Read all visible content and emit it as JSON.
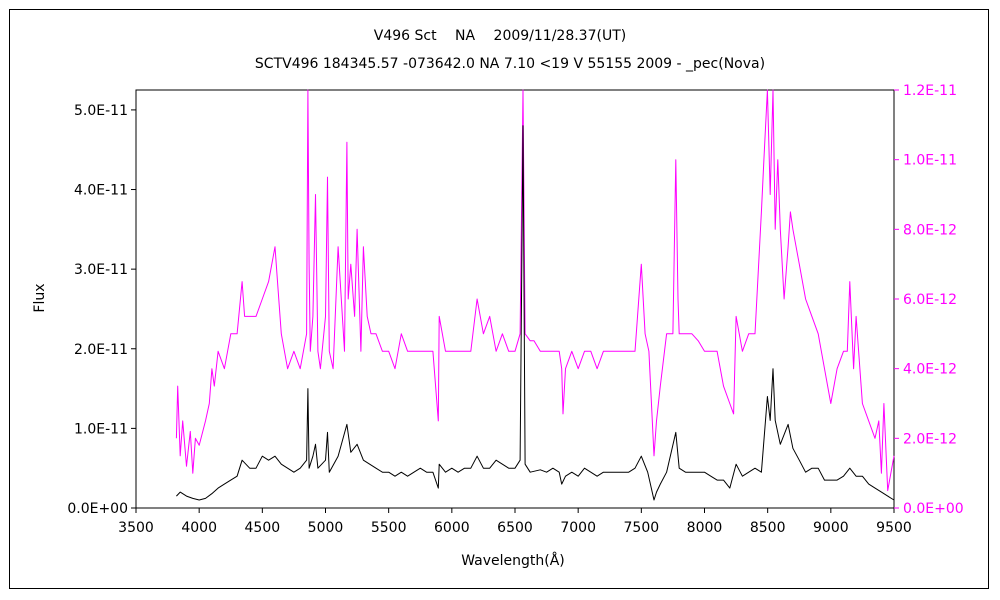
{
  "chart_data": {
    "type": "line",
    "title": "V496 Sct　 NA　 2009/11/28.37(UT)",
    "subtitle": "SCTV496 184345.57 -073642.0 NA 7.10 <19 V 55155 2009 - _pec(Nova)",
    "xlabel": "Wavelength(Å)",
    "ylabel": "Flux",
    "xlim": [
      3500,
      9500
    ],
    "ylim_left": [
      0,
      5.25e-11
    ],
    "ylim_right": [
      0,
      1.2e-11
    ],
    "x_ticks": [
      "3500",
      "4000",
      "4500",
      "5000",
      "5500",
      "6000",
      "6500",
      "7000",
      "7500",
      "8000",
      "8500",
      "9000",
      "9500"
    ],
    "y_ticks_left": [
      "0.0E+00",
      "1.0E-11",
      "2.0E-11",
      "3.0E-11",
      "4.0E-11",
      "5.0E-11"
    ],
    "y_ticks_right": [
      "0.0E+00",
      "2.0E-12",
      "4.0E-12",
      "6.0E-12",
      "8.0E-12",
      "1.0E-11",
      "1.2E-11"
    ],
    "grid": false,
    "series": [
      {
        "axis": "left",
        "color": "#000000",
        "x": [
          3820,
          3850,
          3900,
          3950,
          4000,
          4050,
          4100,
          4150,
          4200,
          4250,
          4300,
          4340,
          4400,
          4450,
          4500,
          4550,
          4600,
          4650,
          4700,
          4750,
          4800,
          4850,
          4861,
          4870,
          4900,
          4921,
          4940,
          5000,
          5016,
          5030,
          5100,
          5169,
          5200,
          5250,
          5300,
          5350,
          5400,
          5450,
          5500,
          5550,
          5600,
          5650,
          5700,
          5750,
          5800,
          5850,
          5893,
          5900,
          5950,
          6000,
          6050,
          6100,
          6150,
          6200,
          6250,
          6300,
          6350,
          6400,
          6450,
          6500,
          6540,
          6563,
          6580,
          6620,
          6700,
          6750,
          6800,
          6850,
          6870,
          6900,
          6950,
          7000,
          7050,
          7100,
          7150,
          7200,
          7250,
          7300,
          7350,
          7400,
          7450,
          7500,
          7550,
          7600,
          7620,
          7650,
          7700,
          7773,
          7800,
          7850,
          7900,
          7950,
          8000,
          8050,
          8100,
          8150,
          8200,
          8250,
          8300,
          8350,
          8400,
          8450,
          8498,
          8520,
          8542,
          8560,
          8600,
          8662,
          8700,
          8750,
          8800,
          8850,
          8900,
          8950,
          9000,
          9050,
          9100,
          9150,
          9200,
          9250,
          9300,
          9350,
          9400,
          9450,
          9500
        ],
        "y": [
          1.5e-12,
          2e-12,
          1.5e-12,
          1.2e-12,
          1e-12,
          1.2e-12,
          1.8e-12,
          2.5e-12,
          3e-12,
          3.5e-12,
          4e-12,
          6e-12,
          5e-12,
          5e-12,
          6.5e-12,
          6e-12,
          6.5e-12,
          5.5e-12,
          5e-12,
          4.5e-12,
          5e-12,
          6e-12,
          1.5e-11,
          5e-12,
          6.5e-12,
          8e-12,
          5e-12,
          6e-12,
          9.5e-12,
          4.5e-12,
          6.5e-12,
          1.05e-11,
          7e-12,
          8e-12,
          6e-12,
          5.5e-12,
          5e-12,
          4.5e-12,
          4.5e-12,
          4e-12,
          4.5e-12,
          4e-12,
          4.5e-12,
          5e-12,
          4.5e-12,
          4.5e-12,
          2.5e-12,
          5.5e-12,
          4.5e-12,
          5e-12,
          4.5e-12,
          5e-12,
          5e-12,
          6.5e-12,
          5e-12,
          5e-12,
          6e-12,
          5.5e-12,
          5e-12,
          5e-12,
          6e-12,
          4.8e-11,
          5.5e-12,
          4.5e-12,
          4.8e-12,
          4.5e-12,
          5e-12,
          4.5e-12,
          3e-12,
          4e-12,
          4.5e-12,
          4e-12,
          5e-12,
          4.5e-12,
          4e-12,
          4.5e-12,
          4.5e-12,
          4.5e-12,
          4.5e-12,
          4.5e-12,
          5e-12,
          6.5e-12,
          4.5e-12,
          1e-12,
          2e-12,
          3e-12,
          4.5e-12,
          9.5e-12,
          5e-12,
          4.5e-12,
          4.5e-12,
          4.5e-12,
          4.5e-12,
          4e-12,
          3.5e-12,
          3.5e-12,
          2.5e-12,
          5.5e-12,
          4e-12,
          4.5e-12,
          5e-12,
          4.5e-12,
          1.4e-11,
          1.1e-11,
          1.75e-11,
          1.1e-11,
          8e-12,
          1.05e-11,
          7.5e-12,
          6e-12,
          4.5e-12,
          5e-12,
          5e-12,
          3.5e-12,
          3.5e-12,
          3.5e-12,
          4e-12,
          5e-12,
          4e-12,
          4e-12,
          3e-12,
          2.5e-12,
          2e-12,
          1.5e-12,
          1e-12
        ]
      },
      {
        "axis": "right",
        "color": "#ff00ff",
        "x": [
          3820,
          3830,
          3850,
          3870,
          3900,
          3930,
          3950,
          3970,
          4000,
          4050,
          4080,
          4101,
          4120,
          4150,
          4200,
          4250,
          4300,
          4340,
          4360,
          4400,
          4450,
          4500,
          4550,
          4600,
          4620,
          4650,
          4700,
          4750,
          4800,
          4850,
          4861,
          4870,
          4880,
          4900,
          4921,
          4940,
          4960,
          5000,
          5016,
          5030,
          5060,
          5100,
          5150,
          5169,
          5180,
          5200,
          5230,
          5250,
          5280,
          5300,
          5330,
          5360,
          5400,
          5450,
          5500,
          5550,
          5600,
          5650,
          5700,
          5750,
          5800,
          5850,
          5893,
          5900,
          5950,
          6000,
          6050,
          6100,
          6150,
          6200,
          6250,
          6300,
          6350,
          6400,
          6450,
          6500,
          6540,
          6563,
          6580,
          6620,
          6650,
          6700,
          6750,
          6800,
          6850,
          6870,
          6880,
          6900,
          6950,
          7000,
          7050,
          7100,
          7150,
          7200,
          7250,
          7300,
          7350,
          7400,
          7450,
          7500,
          7530,
          7560,
          7600,
          7620,
          7650,
          7700,
          7750,
          7773,
          7790,
          7800,
          7850,
          7900,
          7950,
          8000,
          8050,
          8100,
          8150,
          8200,
          8230,
          8250,
          8300,
          8350,
          8400,
          8450,
          8470,
          8498,
          8520,
          8542,
          8560,
          8580,
          8600,
          8630,
          8662,
          8680,
          8700,
          8750,
          8800,
          8850,
          8900,
          8950,
          9000,
          9050,
          9100,
          9130,
          9150,
          9180,
          9200,
          9250,
          9300,
          9350,
          9380,
          9400,
          9420,
          9450,
          9500
        ],
        "y": [
          2e-12,
          3.5e-12,
          1.5e-12,
          2.5e-12,
          1.2e-12,
          2.2e-12,
          1e-12,
          2e-12,
          1.8e-12,
          2.5e-12,
          3e-12,
          4e-12,
          3.5e-12,
          4.5e-12,
          4e-12,
          5e-12,
          5e-12,
          6.5e-12,
          5.5e-12,
          5.5e-12,
          5.5e-12,
          6e-12,
          6.5e-12,
          7.5e-12,
          6.5e-12,
          5e-12,
          4e-12,
          4.5e-12,
          4e-12,
          5e-12,
          1.2e-11,
          7e-12,
          4.5e-12,
          5.5e-12,
          9e-12,
          4.5e-12,
          4e-12,
          5.5e-12,
          9.5e-12,
          4.5e-12,
          4e-12,
          7.5e-12,
          4.5e-12,
          1.05e-11,
          6e-12,
          7e-12,
          5.5e-12,
          8e-12,
          4.5e-12,
          7.5e-12,
          5.5e-12,
          5e-12,
          5e-12,
          4.5e-12,
          4.5e-12,
          4e-12,
          5e-12,
          4.5e-12,
          4.5e-12,
          4.5e-12,
          4.5e-12,
          4.5e-12,
          2.5e-12,
          5.5e-12,
          4.5e-12,
          4.5e-12,
          4.5e-12,
          4.5e-12,
          4.5e-12,
          6e-12,
          5e-12,
          5.5e-12,
          4.5e-12,
          5e-12,
          4.5e-12,
          4.5e-12,
          5e-12,
          1.2e-11,
          5e-12,
          4.8e-12,
          4.8e-12,
          4.5e-12,
          4.5e-12,
          4.5e-12,
          4.5e-12,
          4e-12,
          2.7e-12,
          4e-12,
          4.5e-12,
          4e-12,
          4.5e-12,
          4.5e-12,
          4e-12,
          4.5e-12,
          4.5e-12,
          4.5e-12,
          4.5e-12,
          4.5e-12,
          4.5e-12,
          7e-12,
          5e-12,
          4.5e-12,
          1.5e-12,
          2.5e-12,
          3.5e-12,
          5e-12,
          5e-12,
          1e-11,
          6e-12,
          5e-12,
          5e-12,
          5e-12,
          4.8e-12,
          4.5e-12,
          4.5e-12,
          4.5e-12,
          3.5e-12,
          3e-12,
          2.7e-12,
          5.5e-12,
          4.5e-12,
          5e-12,
          5e-12,
          8.5e-12,
          1e-11,
          1.2e-11,
          9e-12,
          1.2e-11,
          8e-12,
          1e-11,
          8e-12,
          6e-12,
          7.5e-12,
          8.5e-12,
          8e-12,
          7e-12,
          6e-12,
          5.5e-12,
          5e-12,
          4e-12,
          3e-12,
          4e-12,
          4.5e-12,
          4.5e-12,
          6.5e-12,
          4e-12,
          5.5e-12,
          3e-12,
          2.5e-12,
          2e-12,
          2.5e-12,
          1e-12,
          3e-12,
          5e-13,
          1.5e-12
        ]
      }
    ]
  }
}
